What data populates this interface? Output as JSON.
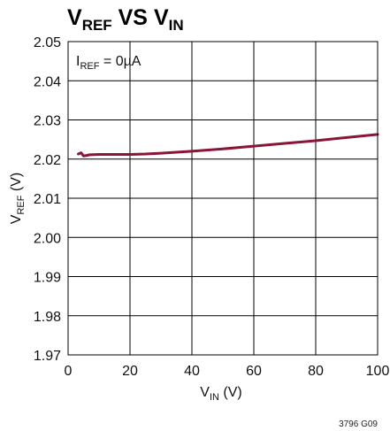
{
  "title": {
    "main_1": "V",
    "sub_1": "REF",
    "mid": " VS ",
    "main_2": "V",
    "sub_2": "IN"
  },
  "annotation": {
    "main": "I",
    "sub": "REF",
    "rest": " = 0µA"
  },
  "figure_id": "3796 G09",
  "colors": {
    "curve": "#8b1537",
    "grid": "#000000",
    "frame": "#000000"
  },
  "chart_data": {
    "type": "line",
    "xlabel": {
      "main": "V",
      "sub": "IN",
      "unit": " (V)"
    },
    "ylabel": {
      "main": "V",
      "sub": "REF",
      "unit": " (V)"
    },
    "xlim": [
      0,
      100
    ],
    "ylim": [
      1.97,
      2.05
    ],
    "xticks": [
      "0",
      "20",
      "40",
      "60",
      "80",
      "100"
    ],
    "xtick_values": [
      0,
      20,
      40,
      60,
      80,
      100
    ],
    "yticks": [
      "1.97",
      "1.98",
      "1.99",
      "2.00",
      "2.01",
      "2.02",
      "2.03",
      "2.04",
      "2.05"
    ],
    "ytick_values": [
      1.97,
      1.98,
      1.99,
      2.0,
      2.01,
      2.02,
      2.03,
      2.04,
      2.05
    ],
    "grid": true,
    "series": [
      {
        "x": [
          3.3,
          4.2,
          5.0,
          5.8,
          7,
          10,
          15,
          20,
          25,
          30,
          40,
          50,
          60,
          70,
          80,
          90,
          100
        ],
        "y": [
          2.0213,
          2.0216,
          2.0208,
          2.0209,
          2.0211,
          2.0212,
          2.0212,
          2.0212,
          2.0213,
          2.0215,
          2.022,
          2.0226,
          2.0233,
          2.024,
          2.0247,
          2.0255,
          2.0263
        ]
      }
    ]
  }
}
